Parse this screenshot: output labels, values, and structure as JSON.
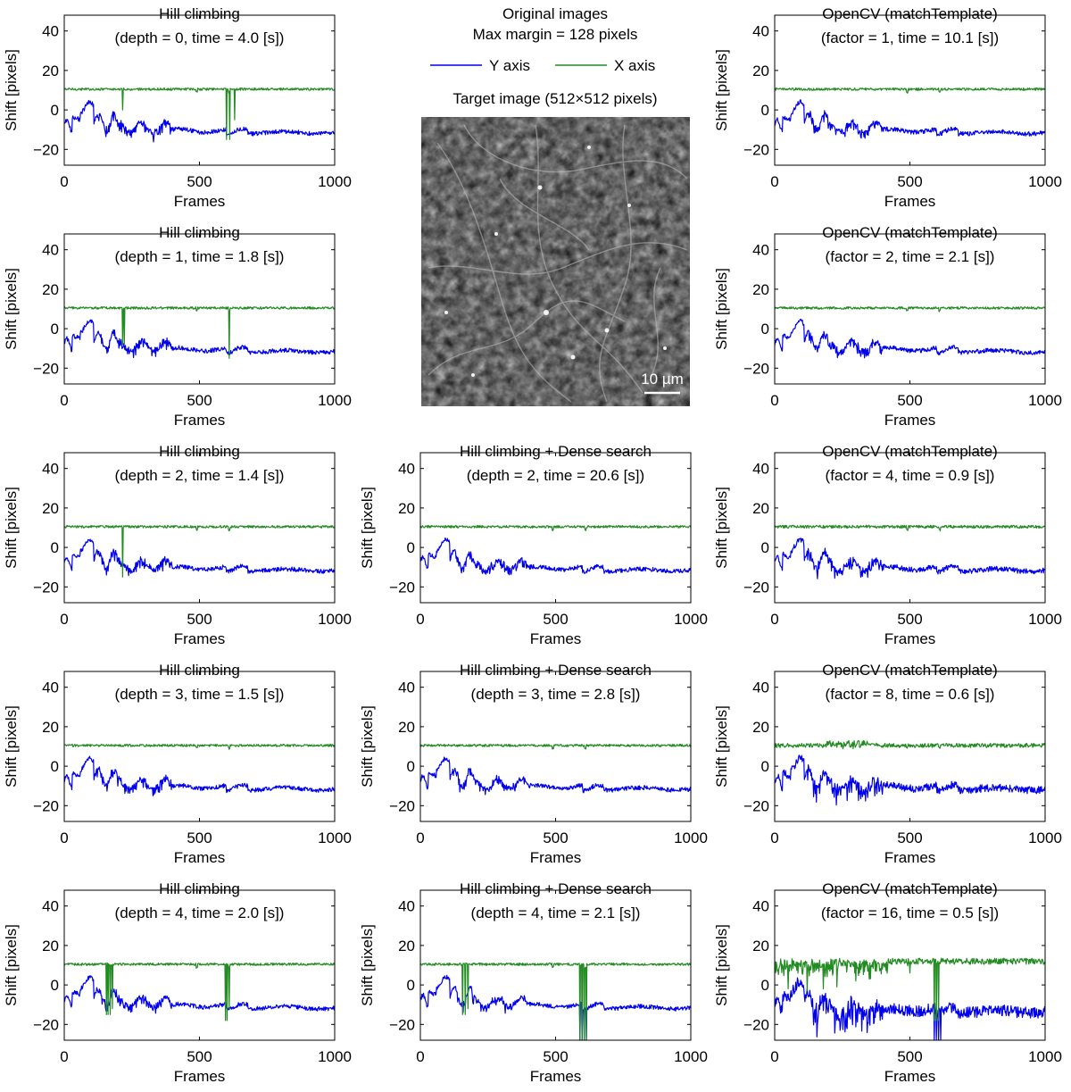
{
  "header": {
    "title_line1": "Original images",
    "title_line2": "Max margin = 128 pixels",
    "legend": [
      {
        "label": "Y axis",
        "color": "#0000ee"
      },
      {
        "label": "X axis",
        "color": "#228b22"
      }
    ]
  },
  "target_image": {
    "title": "Target image (512×512 pixels)",
    "scalebar_label": "10 µm"
  },
  "colors": {
    "y_axis": "#0000ee",
    "x_axis": "#228b22"
  },
  "chart_data": [
    {
      "id": "hc0",
      "type": "line",
      "title_line1": "Hill climbing",
      "title_line2": "(depth = 0, time = 4.0 [s])",
      "xlabel": "Frames",
      "ylabel": "Shift [pixels]",
      "xlim": [
        0,
        1000
      ],
      "ylim": [
        -28,
        48
      ],
      "x_ticks": [
        0,
        500,
        1000
      ],
      "y_ticks": [
        -20,
        0,
        20,
        40
      ],
      "grid": false,
      "x_base": 10.5,
      "y_base": -11,
      "x_spikes": [
        [
          215,
          0
        ],
        [
          600,
          -15
        ],
        [
          612,
          -15
        ],
        [
          630,
          -5
        ]
      ],
      "y_spikes": [],
      "noise": 1
    },
    {
      "id": "hc1",
      "type": "line",
      "title_line1": "Hill climbing",
      "title_line2": "(depth = 1, time = 1.8 [s])",
      "xlabel": "Frames",
      "ylabel": "Shift [pixels]",
      "xlim": [
        0,
        1000
      ],
      "ylim": [
        -28,
        48
      ],
      "x_ticks": [
        0,
        500,
        1000
      ],
      "y_ticks": [
        -20,
        0,
        20,
        40
      ],
      "grid": false,
      "x_base": 10.5,
      "y_base": -11,
      "x_spikes": [
        [
          215,
          -8
        ],
        [
          222,
          -8
        ],
        [
          610,
          -15
        ]
      ],
      "y_spikes": [],
      "noise": 1
    },
    {
      "id": "hc2",
      "type": "line",
      "title_line1": "Hill climbing",
      "title_line2": "(depth = 2, time = 1.4 [s])",
      "xlabel": "Frames",
      "ylabel": "Shift [pixels]",
      "xlim": [
        0,
        1000
      ],
      "ylim": [
        -28,
        48
      ],
      "x_ticks": [
        0,
        500,
        1000
      ],
      "y_ticks": [
        -20,
        0,
        20,
        40
      ],
      "grid": false,
      "x_base": 10.5,
      "y_base": -11,
      "x_spikes": [
        [
          215,
          -15
        ]
      ],
      "y_spikes": [],
      "noise": 1
    },
    {
      "id": "hc3",
      "type": "line",
      "title_line1": "Hill climbing",
      "title_line2": "(depth = 3, time = 1.5 [s])",
      "xlabel": "Frames",
      "ylabel": "Shift [pixels]",
      "xlim": [
        0,
        1000
      ],
      "ylim": [
        -28,
        48
      ],
      "x_ticks": [
        0,
        500,
        1000
      ],
      "y_ticks": [
        -20,
        0,
        20,
        40
      ],
      "grid": false,
      "x_base": 10.5,
      "y_base": -11,
      "x_spikes": [],
      "y_spikes": [],
      "noise": 1
    },
    {
      "id": "hc4",
      "type": "line",
      "title_line1": "Hill climbing",
      "title_line2": "(depth = 4, time = 2.0 [s])",
      "xlabel": "Frames",
      "ylabel": "Shift [pixels]",
      "xlim": [
        0,
        1000
      ],
      "ylim": [
        -28,
        48
      ],
      "x_ticks": [
        0,
        500,
        1000
      ],
      "y_ticks": [
        -20,
        0,
        20,
        40
      ],
      "grid": false,
      "x_base": 10.5,
      "y_base": -11,
      "x_spikes": [
        [
          155,
          -15
        ],
        [
          162,
          -15
        ],
        [
          170,
          -15
        ],
        [
          178,
          -12
        ],
        [
          595,
          -18
        ],
        [
          602,
          -18
        ],
        [
          610,
          -12
        ]
      ],
      "y_spikes": [],
      "noise": 1
    },
    {
      "id": "hd2",
      "type": "line",
      "title_line1": "Hill climbing + Dense search",
      "title_line2": "(depth = 2, time = 20.6 [s])",
      "xlabel": "Frames",
      "ylabel": "Shift [pixels]",
      "xlim": [
        0,
        1000
      ],
      "ylim": [
        -28,
        48
      ],
      "x_ticks": [
        0,
        500,
        1000
      ],
      "y_ticks": [
        -20,
        0,
        20,
        40
      ],
      "grid": false,
      "x_base": 10.5,
      "y_base": -11,
      "x_spikes": [],
      "y_spikes": [],
      "noise": 1
    },
    {
      "id": "hd3",
      "type": "line",
      "title_line1": "Hill climbing + Dense search",
      "title_line2": "(depth = 3, time = 2.8 [s])",
      "xlabel": "Frames",
      "ylabel": "Shift [pixels]",
      "xlim": [
        0,
        1000
      ],
      "ylim": [
        -28,
        48
      ],
      "x_ticks": [
        0,
        500,
        1000
      ],
      "y_ticks": [
        -20,
        0,
        20,
        40
      ],
      "grid": false,
      "x_base": 10.5,
      "y_base": -11,
      "x_spikes": [],
      "y_spikes": [],
      "noise": 1
    },
    {
      "id": "hd4",
      "type": "line",
      "title_line1": "Hill climbing + Dense search",
      "title_line2": "(depth = 4, time = 2.1 [s])",
      "xlabel": "Frames",
      "ylabel": "Shift [pixels]",
      "xlim": [
        0,
        1000
      ],
      "ylim": [
        -28,
        48
      ],
      "x_ticks": [
        0,
        500,
        1000
      ],
      "y_ticks": [
        -20,
        0,
        20,
        40
      ],
      "grid": false,
      "x_base": 10.5,
      "y_base": -11,
      "x_spikes": [
        [
          155,
          -15
        ],
        [
          165,
          -15
        ],
        [
          175,
          -12
        ],
        [
          590,
          -28
        ],
        [
          598,
          -28
        ],
        [
          606,
          -28
        ],
        [
          614,
          -28
        ]
      ],
      "y_spikes": [
        [
          590,
          -28
        ],
        [
          598,
          -28
        ],
        [
          606,
          -28
        ],
        [
          614,
          -28
        ]
      ],
      "noise": 1
    },
    {
      "id": "cv1",
      "type": "line",
      "title_line1": "OpenCV (matchTemplate)",
      "title_line2": "(factor = 1, time = 10.1 [s])",
      "xlabel": "Frames",
      "ylabel": "Shift [pixels]",
      "xlim": [
        0,
        1000
      ],
      "ylim": [
        -28,
        48
      ],
      "x_ticks": [
        0,
        500,
        1000
      ],
      "y_ticks": [
        -20,
        0,
        20,
        40
      ],
      "grid": false,
      "x_base": 10.5,
      "y_base": -11,
      "x_spikes": [],
      "y_spikes": [],
      "noise": 1
    },
    {
      "id": "cv2",
      "type": "line",
      "title_line1": "OpenCV (matchTemplate)",
      "title_line2": "(factor = 2, time = 2.1 [s])",
      "xlabel": "Frames",
      "ylabel": "Shift [pixels]",
      "xlim": [
        0,
        1000
      ],
      "ylim": [
        -28,
        48
      ],
      "x_ticks": [
        0,
        500,
        1000
      ],
      "y_ticks": [
        -20,
        0,
        20,
        40
      ],
      "grid": false,
      "x_base": 10.5,
      "y_base": -11,
      "x_spikes": [],
      "y_spikes": [],
      "noise": 1
    },
    {
      "id": "cv4",
      "type": "line",
      "title_line1": "OpenCV (matchTemplate)",
      "title_line2": "(factor = 4, time = 0.9 [s])",
      "xlabel": "Frames",
      "ylabel": "Shift [pixels]",
      "xlim": [
        0,
        1000
      ],
      "ylim": [
        -28,
        48
      ],
      "x_ticks": [
        0,
        500,
        1000
      ],
      "y_ticks": [
        -20,
        0,
        20,
        40
      ],
      "grid": false,
      "x_base": 10.5,
      "y_base": -11,
      "x_spikes": [],
      "y_spikes": [],
      "noise": 1.2
    },
    {
      "id": "cv8",
      "type": "line",
      "title_line1": "OpenCV (matchTemplate)",
      "title_line2": "(factor = 8, time = 0.6 [s])",
      "xlabel": "Frames",
      "ylabel": "Shift [pixels]",
      "xlim": [
        0,
        1000
      ],
      "ylim": [
        -28,
        48
      ],
      "x_ticks": [
        0,
        500,
        1000
      ],
      "y_ticks": [
        -20,
        0,
        20,
        40
      ],
      "grid": false,
      "x_base": 10.5,
      "y_base": -11,
      "x_spikes": [],
      "y_spikes": [],
      "noise": 1.8
    },
    {
      "id": "cv16",
      "type": "line",
      "title_line1": "OpenCV (matchTemplate)",
      "title_line2": "(factor = 16, time = 0.5 [s])",
      "xlabel": "Frames",
      "ylabel": "Shift [pixels]",
      "xlim": [
        0,
        1000
      ],
      "ylim": [
        -28,
        48
      ],
      "x_ticks": [
        0,
        500,
        1000
      ],
      "y_ticks": [
        -20,
        0,
        20,
        40
      ],
      "grid": false,
      "x_base": 12,
      "y_base": -13,
      "x_spikes": [
        [
          50,
          -2
        ],
        [
          120,
          -3
        ],
        [
          180,
          -2
        ],
        [
          230,
          -1
        ],
        [
          300,
          2
        ],
        [
          350,
          3
        ],
        [
          500,
          6
        ],
        [
          590,
          -18
        ],
        [
          598,
          -18
        ],
        [
          606,
          -18
        ]
      ],
      "y_spikes": [
        [
          590,
          -28
        ],
        [
          598,
          -28
        ],
        [
          606,
          -28
        ],
        [
          614,
          -28
        ]
      ],
      "noise": 2.6
    }
  ]
}
